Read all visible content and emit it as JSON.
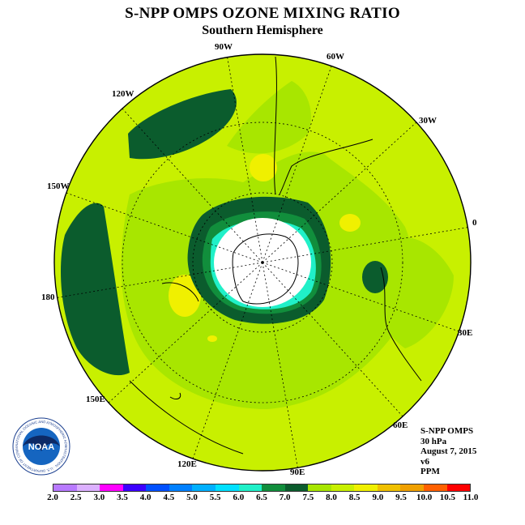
{
  "header": {
    "title": "S-NPP OMPS OZONE MIXING RATIO",
    "subtitle": "Southern Hemisphere"
  },
  "map": {
    "projection": "south-polar-stereographic",
    "longitude_labels": [
      "90W",
      "60W",
      "30W",
      "0",
      "30E",
      "60E",
      "90E",
      "120E",
      "150E",
      "180",
      "150W",
      "120W"
    ],
    "colors": {
      "ocean_background": "#c8f000",
      "ozone_7_0": "#0b5c2d",
      "ozone_6_5": "#118e3c",
      "ozone_6_0": "#20f0c8",
      "ozone_7_5": "#a8e600",
      "ozone_8_5": "#f0f000",
      "ozone_low": "#ffffff",
      "coastline": "#000000",
      "graticule": "#000000"
    }
  },
  "info": {
    "instrument": "S-NPP OMPS",
    "level": "30 hPa",
    "date": "August 7, 2015",
    "version": "v6",
    "units": "PPM"
  },
  "legend": {
    "ticks": [
      "2.0",
      "2.5",
      "3.0",
      "3.5",
      "4.0",
      "4.5",
      "5.0",
      "5.5",
      "6.0",
      "6.5",
      "7.0",
      "7.5",
      "8.0",
      "8.5",
      "9.0",
      "9.5",
      "10.0",
      "10.5",
      "11.0"
    ],
    "colors": [
      "#b87aff",
      "#dcb0ff",
      "#ff00ff",
      "#3c00ff",
      "#0050ff",
      "#0080ff",
      "#00b0ff",
      "#00e0ff",
      "#20f0c8",
      "#118e3c",
      "#0b5c2d",
      "#a8e600",
      "#c8f000",
      "#f0f000",
      "#f0c000",
      "#f0a000",
      "#ff6000",
      "#ff0000",
      "#8b4513"
    ]
  },
  "logo": {
    "text": "NOAA",
    "ring_text": "NATIONAL OCEANIC AND ATMOSPHERIC ADMINISTRATION · U.S. DEPARTMENT OF COMMERCE"
  }
}
